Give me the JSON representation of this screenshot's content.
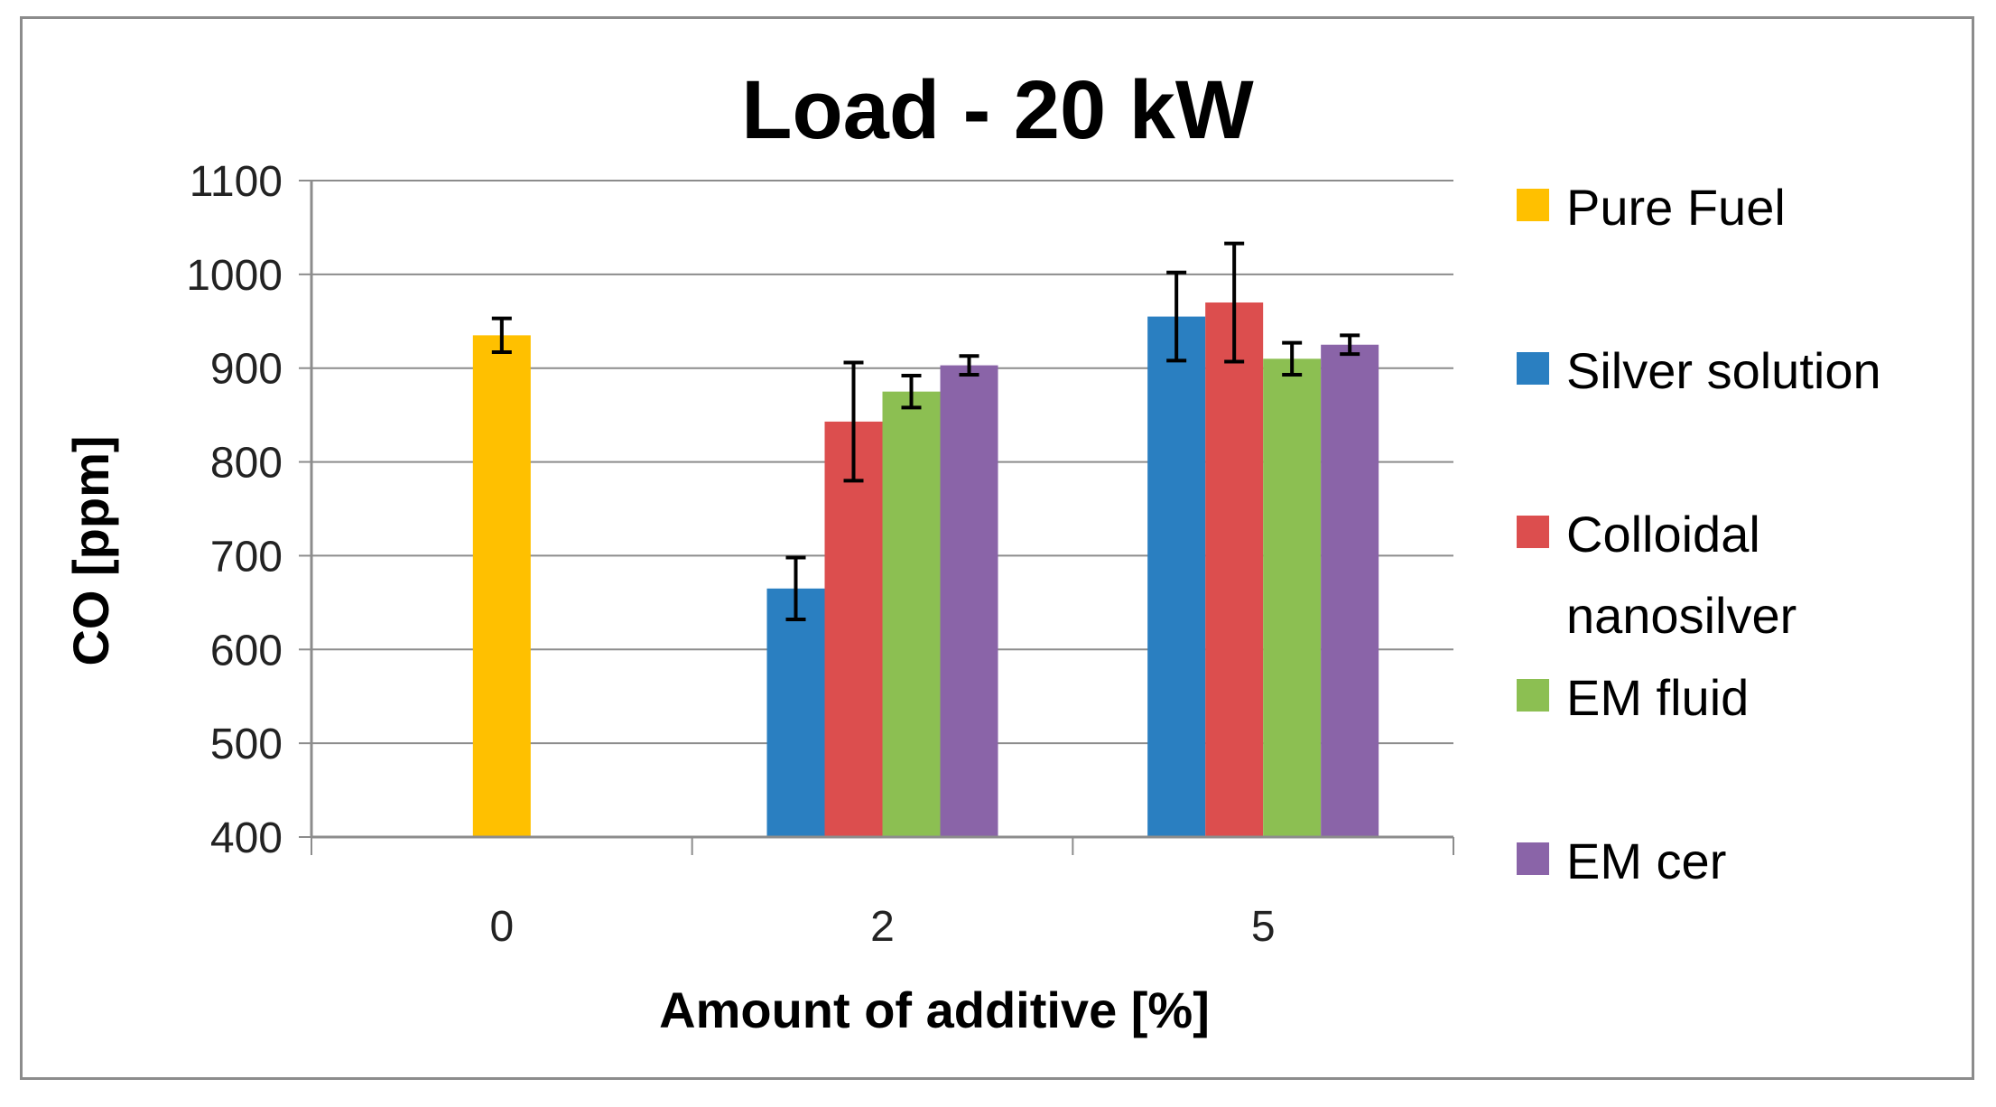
{
  "chart_data": {
    "type": "bar",
    "title": "Load - 20 kW",
    "xlabel": "Amount of additive [%]",
    "ylabel": "CO  [ppm]",
    "ylim": [
      400,
      1100
    ],
    "yticks": [
      "1100",
      "1000",
      "900",
      "800",
      "700",
      "600",
      "500",
      "400"
    ],
    "ytick_values": [
      1100,
      1000,
      900,
      800,
      700,
      600,
      500,
      400
    ],
    "categories": [
      "0",
      "2",
      "5"
    ],
    "grid": true,
    "legend_position": "right",
    "series": [
      {
        "name": "Pure Fuel",
        "color": "#ffc000",
        "values": [
          935,
          null,
          null
        ],
        "errors": [
          18,
          null,
          null
        ]
      },
      {
        "name": "Silver solution",
        "color": "#2a7fc1",
        "values": [
          null,
          665,
          955
        ],
        "errors": [
          null,
          33,
          47
        ]
      },
      {
        "name": "Colloidal nanosilver",
        "legend_lines": [
          "Colloidal",
          "nanosilver"
        ],
        "color": "#dc4e4e",
        "values": [
          null,
          843,
          970
        ],
        "errors": [
          null,
          63,
          63
        ]
      },
      {
        "name": "EM fluid",
        "color": "#8cbf52",
        "values": [
          null,
          875,
          910
        ],
        "errors": [
          null,
          17,
          17
        ]
      },
      {
        "name": "EM cer",
        "color": "#8a64a8",
        "values": [
          null,
          903,
          925
        ],
        "errors": [
          null,
          10,
          10
        ]
      }
    ]
  }
}
